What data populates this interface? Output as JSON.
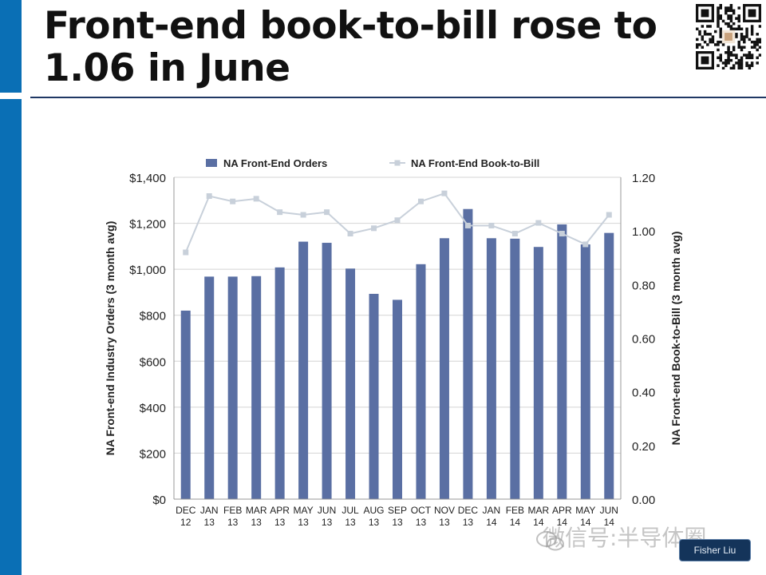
{
  "slide": {
    "title": "Front-end book-to-bill rose to 1.06 in June",
    "colors": {
      "side_bar": "#0a6fb5",
      "title_rule": "#1f3864"
    }
  },
  "watermark": {
    "text": "微信号:半导体圈",
    "author": "Fisher Liu"
  },
  "chart_data": {
    "type": "bar",
    "categories": [
      [
        "DEC",
        "12"
      ],
      [
        "JAN",
        "13"
      ],
      [
        "FEB",
        "13"
      ],
      [
        "MAR",
        "13"
      ],
      [
        "APR",
        "13"
      ],
      [
        "MAY",
        "13"
      ],
      [
        "JUN",
        "13"
      ],
      [
        "JUL",
        "13"
      ],
      [
        "AUG",
        "13"
      ],
      [
        "SEP",
        "13"
      ],
      [
        "OCT",
        "13"
      ],
      [
        "NOV",
        "13"
      ],
      [
        "DEC",
        "13"
      ],
      [
        "JAN",
        "14"
      ],
      [
        "FEB",
        "14"
      ],
      [
        "MAR",
        "14"
      ],
      [
        "APR",
        "14"
      ],
      [
        "MAY",
        "14"
      ],
      [
        "JUN",
        "14"
      ]
    ],
    "series": [
      {
        "name": "NA Front-End Orders",
        "type": "bar",
        "axis": "left",
        "color": "#5a6fa3",
        "values": [
          820,
          968,
          968,
          970,
          1008,
          1120,
          1115,
          1003,
          893,
          867,
          1022,
          1135,
          1262,
          1135,
          1133,
          1097,
          1195,
          1108,
          1158
        ]
      },
      {
        "name": "NA Front-End Book-to-Bill",
        "type": "line",
        "axis": "right",
        "color": "#c8d0da",
        "values": [
          0.92,
          1.13,
          1.11,
          1.12,
          1.07,
          1.06,
          1.07,
          0.99,
          1.01,
          1.04,
          1.11,
          1.14,
          1.02,
          1.02,
          0.99,
          1.03,
          0.99,
          0.95,
          1.06
        ]
      }
    ],
    "y_left": {
      "label": "NA Front-end Industry Orders (3 month avg)",
      "min": 0,
      "max": 1400,
      "step": 200,
      "ticks": [
        "$0",
        "$200",
        "$400",
        "$600",
        "$800",
        "$1,000",
        "$1,200",
        "$1,400"
      ]
    },
    "y_right": {
      "label": "NA Front-end Book-to-Bill (3 month avg)",
      "min": 0,
      "max": 1.2,
      "step": 0.2,
      "ticks": [
        "0.00",
        "0.20",
        "0.40",
        "0.60",
        "0.80",
        "1.00",
        "1.20"
      ]
    },
    "grid": true,
    "legend_position": "top"
  }
}
